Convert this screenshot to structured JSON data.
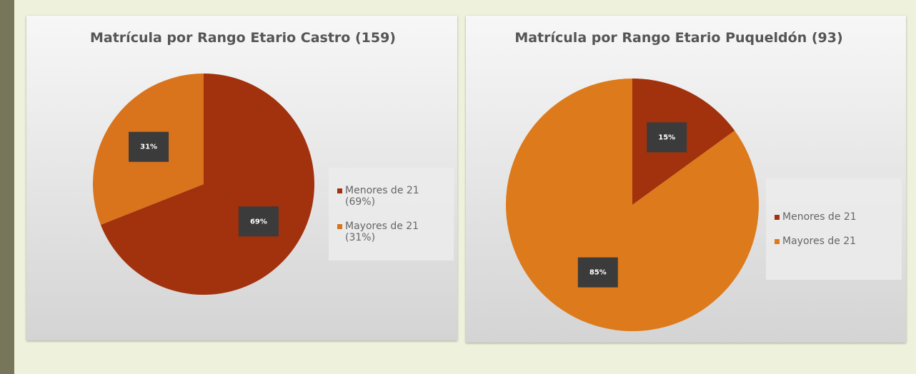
{
  "chart_data": [
    {
      "type": "pie",
      "title": "Matrícula por Rango Etario Castro (159)",
      "categories": [
        "Menores de 21 (69%)",
        "Mayores de 21 (31%)"
      ],
      "values": [
        69,
        31
      ],
      "value_labels": [
        "69%",
        "31%"
      ],
      "colors": [
        "#a2310d",
        "#d9731c"
      ],
      "legend": "right"
    },
    {
      "type": "pie",
      "title": "Matrícula por Rango Etario Puqueldón (93)",
      "categories": [
        "Menores de 21",
        "Mayores de 21"
      ],
      "values": [
        15,
        85
      ],
      "value_labels": [
        "15%",
        "85%"
      ],
      "colors": [
        "#a2310d",
        "#dd7a1c"
      ],
      "legend": "right"
    }
  ]
}
